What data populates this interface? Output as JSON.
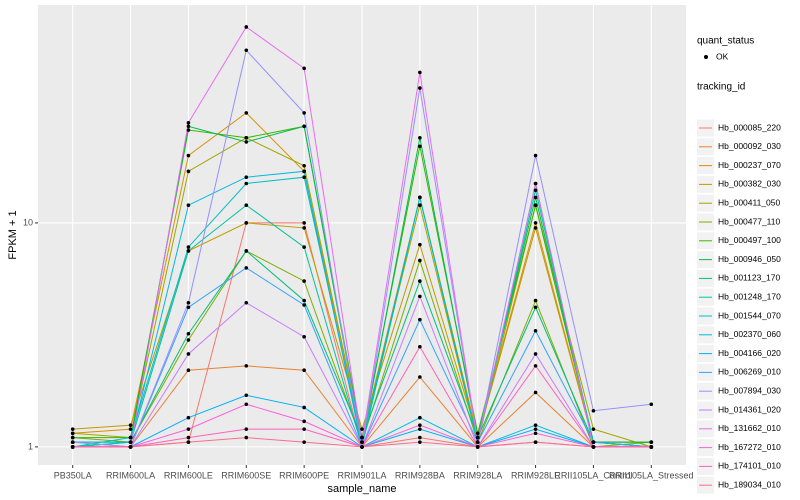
{
  "chart_data": {
    "type": "line",
    "x_label": "sample_name",
    "y_label": "FPKM + 1",
    "log_scale": true,
    "grid": true,
    "legend_position": "right",
    "shape_legend": {
      "title": "quant_status",
      "labels": [
        "OK"
      ]
    },
    "color_legend_title": "tracking_id",
    "categories": [
      "PB350LA",
      "RRIM600LA",
      "RRIM600LE",
      "RRIM600SE",
      "RRIM600PE",
      "RRIM901LA",
      "RRIM928BA",
      "RRIM928LA",
      "RRIM928LE",
      "RRII105LA_Control",
      "RRII105LA_Stressed"
    ],
    "ylim": [
      0.83,
      94
    ],
    "yticks": [
      1,
      10
    ],
    "series": [
      {
        "name": "Hb_000085_220",
        "color": "#F8766D",
        "values": [
          1.0,
          1.0,
          1.05,
          10,
          10,
          1.0,
          1.1,
          1.0,
          1.05,
          1.0,
          1.0
        ]
      },
      {
        "name": "Hb_000092_030",
        "color": "#EA8331",
        "values": [
          1.05,
          1.0,
          2.2,
          2.3,
          2.2,
          1.0,
          2.05,
          1.0,
          1.75,
          1.0,
          1.0
        ]
      },
      {
        "name": "Hb_000237_070",
        "color": "#D89000",
        "values": [
          1.15,
          1.2,
          20,
          31,
          17,
          1.1,
          13,
          1.1,
          10,
          1.05,
          1.05
        ]
      },
      {
        "name": "Hb_000382_030",
        "color": "#C09B00",
        "values": [
          1.2,
          1.25,
          7.5,
          10,
          9.5,
          1.2,
          8,
          1.1,
          9.5,
          1.05,
          1.0
        ]
      },
      {
        "name": "Hb_000411_050",
        "color": "#A3A500",
        "values": [
          1.15,
          1.1,
          17,
          24,
          18,
          1.1,
          12,
          1.05,
          12,
          1.2,
          1.0
        ]
      },
      {
        "name": "Hb_000477_110",
        "color": "#7CAE00",
        "values": [
          1.1,
          1.05,
          3,
          7.5,
          5.5,
          1.05,
          6.8,
          1.05,
          4.5,
          1.0,
          1.05
        ]
      },
      {
        "name": "Hb_000497_100",
        "color": "#39B600",
        "values": [
          1.1,
          1.1,
          26,
          24,
          27,
          1.1,
          22,
          1.15,
          12,
          1.05,
          1.05
        ]
      },
      {
        "name": "Hb_000946_050",
        "color": "#00BB4E",
        "values": [
          1.0,
          1.05,
          27,
          23,
          27,
          1.05,
          24,
          1.1,
          13,
          1.05,
          1.05
        ]
      },
      {
        "name": "Hb_001123_170",
        "color": "#00BF7D",
        "values": [
          1.05,
          1.05,
          3.2,
          7.5,
          4.5,
          1.1,
          5.5,
          1.1,
          4.2,
          1.05,
          1.0
        ]
      },
      {
        "name": "Hb_001248_170",
        "color": "#00C1A3",
        "values": [
          1.0,
          1.05,
          7.5,
          12,
          7.8,
          1.0,
          13,
          1.05,
          14,
          1.05,
          1.0
        ]
      },
      {
        "name": "Hb_001544_070",
        "color": "#00BFC4",
        "values": [
          1.0,
          1.1,
          7.8,
          15,
          16,
          1.05,
          13,
          1.05,
          15,
          1.0,
          1.0
        ]
      },
      {
        "name": "Hb_002370_060",
        "color": "#00BAE0",
        "values": [
          1.05,
          1.05,
          12,
          16,
          17,
          1.0,
          1.35,
          1.0,
          1.25,
          1.0,
          1.0
        ]
      },
      {
        "name": "Hb_004166_020",
        "color": "#00B0F6",
        "values": [
          1.0,
          1.0,
          1.35,
          1.7,
          1.5,
          1.0,
          1.2,
          1.0,
          1.2,
          1.0,
          1.0
        ]
      },
      {
        "name": "Hb_006269_010",
        "color": "#35A2FF",
        "values": [
          1.0,
          1.0,
          4.2,
          6.3,
          4.3,
          1.0,
          3.7,
          1.05,
          3.3,
          1.05,
          1.0
        ]
      },
      {
        "name": "Hb_007894_030",
        "color": "#9590FF",
        "values": [
          1.05,
          1.0,
          4.4,
          59,
          31,
          1.0,
          40,
          1.05,
          20,
          1.45,
          1.55
        ]
      },
      {
        "name": "Hb_014361_020",
        "color": "#C77CFF",
        "values": [
          1.0,
          1.0,
          2.6,
          4.4,
          3.1,
          1.0,
          4.7,
          1.0,
          2.6,
          1.0,
          1.0
        ]
      },
      {
        "name": "Hb_131662_010",
        "color": "#E76BF3",
        "values": [
          1.0,
          1.0,
          28,
          75,
          49,
          1.05,
          47,
          1.05,
          15,
          1.0,
          1.0
        ]
      },
      {
        "name": "Hb_167272_010",
        "color": "#FA62DB",
        "values": [
          1.0,
          1.0,
          1.2,
          1.55,
          1.3,
          1.0,
          1.25,
          1.0,
          1.15,
          1.0,
          1.0
        ]
      },
      {
        "name": "Hb_174101_010",
        "color": "#FF62BC",
        "values": [
          1.0,
          1.0,
          1.1,
          1.2,
          1.2,
          1.0,
          2.8,
          1.0,
          2.3,
          1.0,
          1.0
        ]
      },
      {
        "name": "Hb_189034_010",
        "color": "#FF6C91",
        "values": [
          1.0,
          1.0,
          1.05,
          1.1,
          1.05,
          1.0,
          1.05,
          1.0,
          1.05,
          1.0,
          1.0
        ]
      }
    ]
  }
}
